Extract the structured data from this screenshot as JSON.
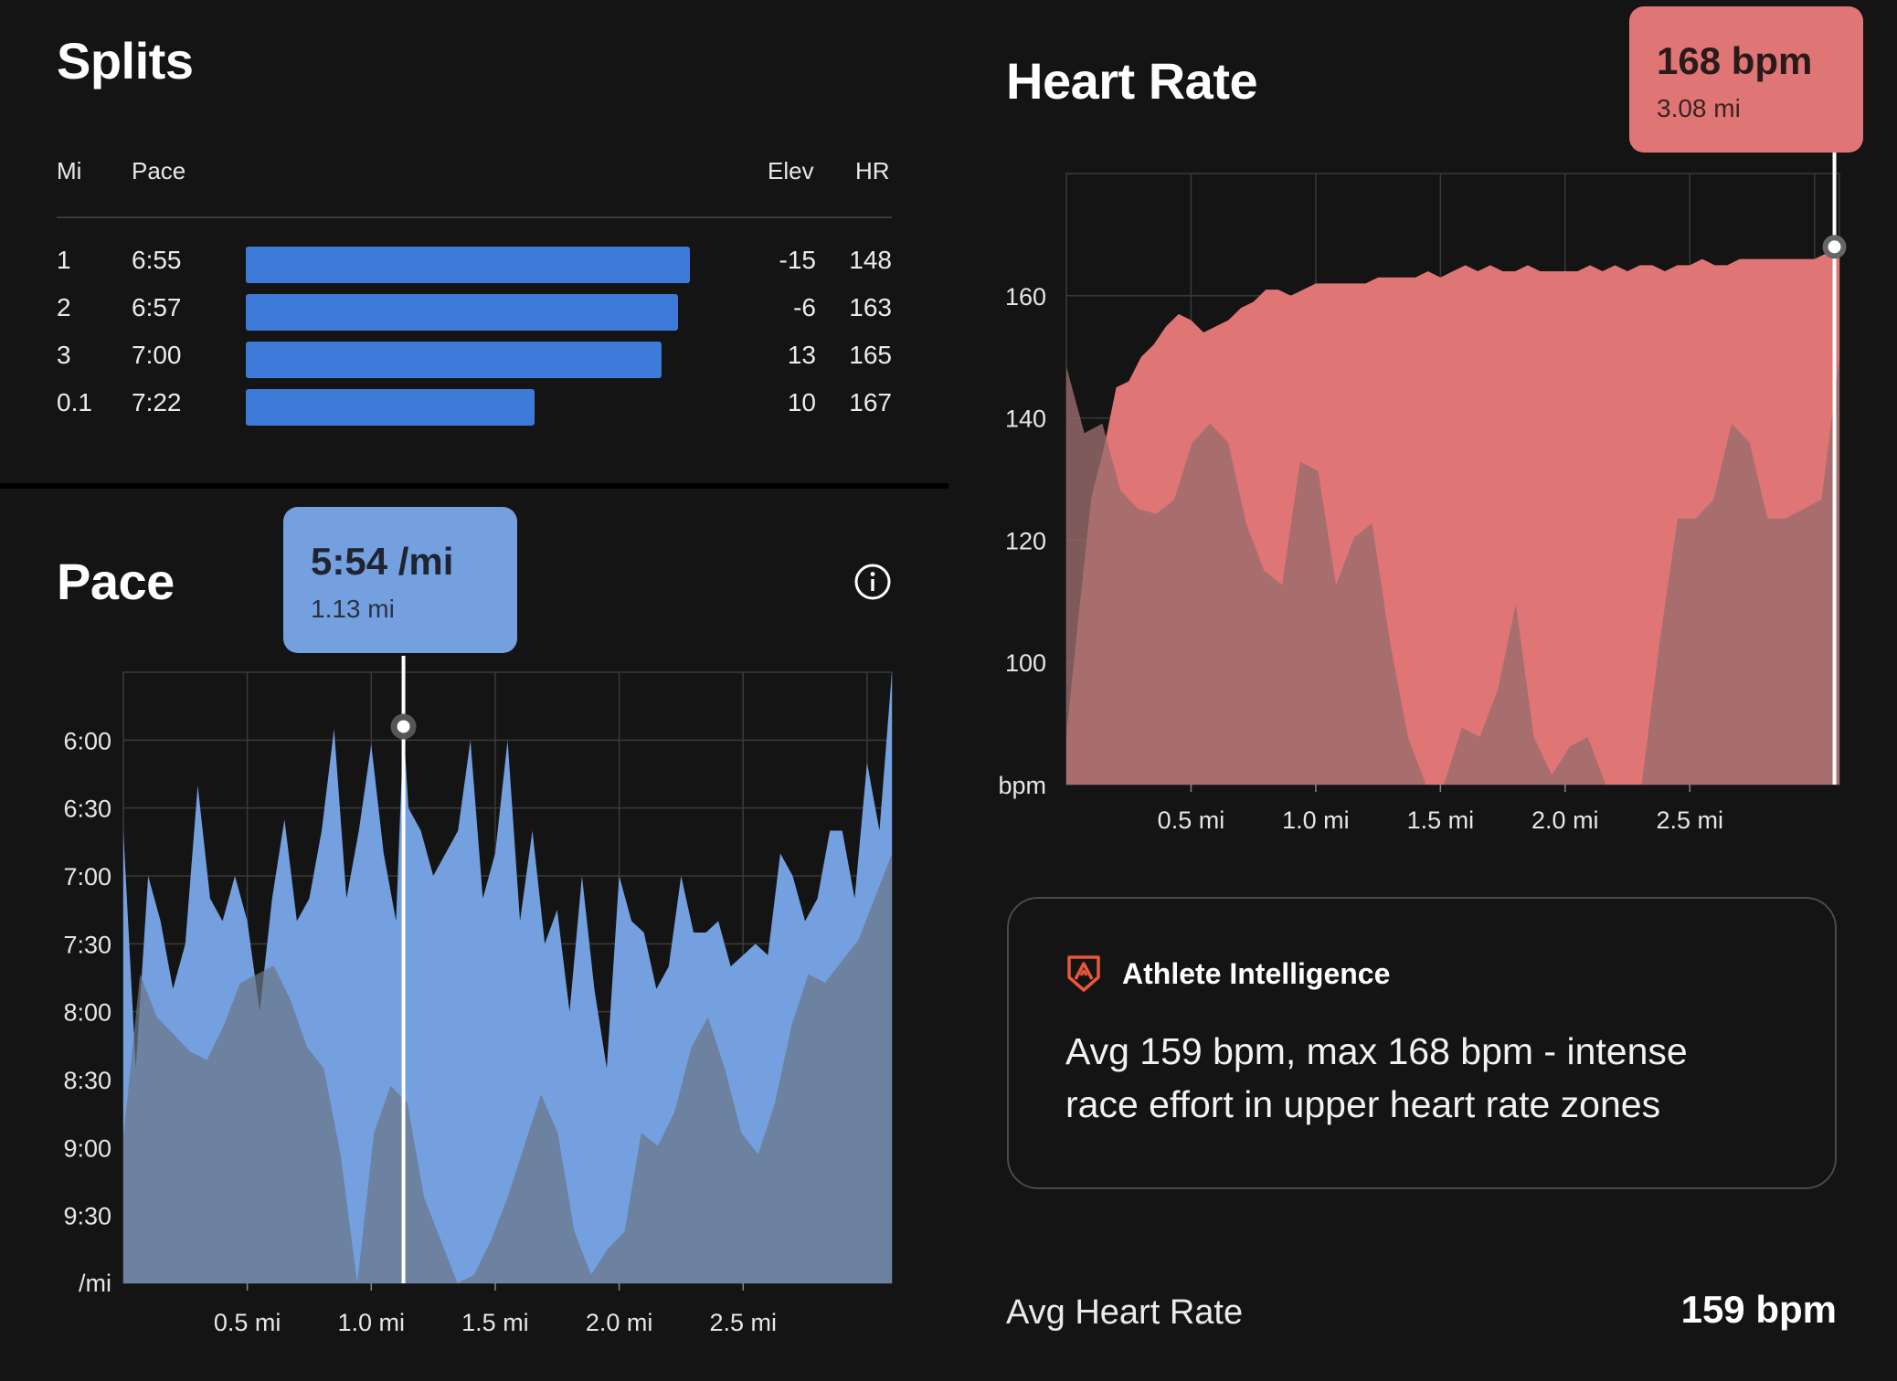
{
  "splits": {
    "title": "Splits",
    "columns": {
      "mi": "Mi",
      "pace": "Pace",
      "elev": "Elev",
      "hr": "HR"
    },
    "rows": [
      {
        "mi": "1",
        "pace": "6:55",
        "elev": "-15",
        "hr": "148",
        "pace_seconds": 415
      },
      {
        "mi": "2",
        "pace": "6:57",
        "elev": "-6",
        "hr": "163",
        "pace_seconds": 417
      },
      {
        "mi": "3",
        "pace": "7:00",
        "elev": "13",
        "hr": "165",
        "pace_seconds": 420
      },
      {
        "mi": "0.1",
        "pace": "7:22",
        "elev": "10",
        "hr": "167",
        "pace_seconds": 442
      }
    ],
    "bar_color": "#3e7bd9"
  },
  "pace": {
    "title": "Pace",
    "info_icon": "info-icon",
    "tooltip": {
      "value": "5:54 /mi",
      "distance": "1.13 mi"
    },
    "color": "#74a0e0",
    "elevation_color": "#6b7486"
  },
  "heart_rate": {
    "title": "Heart Rate",
    "tooltip": {
      "value": "168 bpm",
      "distance": "3.08 mi"
    },
    "color": "#e07576",
    "elevation_color": "#9a6b6b"
  },
  "athlete_intelligence": {
    "icon": "athlete-intelligence-icon",
    "title": "Athlete Intelligence",
    "body_line1": "Avg 159 bpm, max 168 bpm - intense",
    "body_line2": "race effort in upper heart rate zones",
    "accent": "#e8573a"
  },
  "summary": {
    "label": "Avg Heart Rate",
    "value": "159 bpm"
  },
  "chart_data": [
    {
      "type": "area",
      "title": "Pace",
      "ylabel": "/mi",
      "xlabel": "",
      "x_ticks": [
        "0.5 mi",
        "1.0 mi",
        "1.5 mi",
        "2.0 mi",
        "2.5 mi"
      ],
      "y_ticks": [
        "6:00",
        "6:30",
        "7:00",
        "7:30",
        "8:00",
        "8:30",
        "9:00",
        "9:30"
      ],
      "xlim": [
        0,
        3.1
      ],
      "ylim_seconds_per_mile": [
        330,
        600
      ],
      "y_axis_inverted": true,
      "grid": true,
      "series": [
        {
          "x": [
            0,
            0.05,
            0.1,
            0.15,
            0.2,
            0.25,
            0.3,
            0.35,
            0.4,
            0.45,
            0.5,
            0.55,
            0.6,
            0.65,
            0.7,
            0.75,
            0.8,
            0.85,
            0.9,
            0.95,
            1.0,
            1.05,
            1.1,
            1.13,
            1.15,
            1.2,
            1.25,
            1.3,
            1.35,
            1.4,
            1.45,
            1.5,
            1.55,
            1.6,
            1.65,
            1.7,
            1.75,
            1.8,
            1.85,
            1.9,
            1.95,
            2.0,
            2.05,
            2.1,
            2.15,
            2.2,
            2.25,
            2.3,
            2.35,
            2.4,
            2.45,
            2.5,
            2.55,
            2.6,
            2.65,
            2.7,
            2.75,
            2.8,
            2.85,
            2.9,
            2.95,
            3.0,
            3.05,
            3.1
          ],
          "pace_seconds": [
            400,
            505,
            420,
            440,
            470,
            450,
            380,
            430,
            440,
            420,
            440,
            480,
            430,
            395,
            440,
            430,
            400,
            355,
            430,
            400,
            362,
            410,
            440,
            354,
            390,
            400,
            420,
            410,
            400,
            360,
            430,
            410,
            360,
            440,
            400,
            450,
            435,
            480,
            420,
            470,
            505,
            420,
            440,
            445,
            470,
            460,
            420,
            445,
            445,
            440,
            460,
            455,
            450,
            455,
            410,
            420,
            440,
            430,
            400,
            400,
            430,
            370,
            400,
            330
          ]
        }
      ],
      "elevation_profile": true
    },
    {
      "type": "area",
      "title": "Heart Rate",
      "ylabel": "bpm",
      "xlabel": "",
      "x_ticks": [
        "0.5 mi",
        "1.0 mi",
        "1.5 mi",
        "2.0 mi",
        "2.5 mi"
      ],
      "y_ticks": [
        "160",
        "140",
        "120",
        "100",
        "bpm"
      ],
      "xlim": [
        0,
        3.1
      ],
      "ylim": [
        80,
        180
      ],
      "grid": true,
      "series": [
        {
          "x": [
            0,
            0.05,
            0.1,
            0.15,
            0.2,
            0.25,
            0.3,
            0.35,
            0.4,
            0.45,
            0.5,
            0.55,
            0.6,
            0.65,
            0.7,
            0.75,
            0.8,
            0.85,
            0.9,
            0.95,
            1.0,
            1.05,
            1.1,
            1.15,
            1.2,
            1.25,
            1.3,
            1.35,
            1.4,
            1.45,
            1.5,
            1.55,
            1.6,
            1.65,
            1.7,
            1.75,
            1.8,
            1.85,
            1.9,
            1.95,
            2.0,
            2.05,
            2.1,
            2.15,
            2.2,
            2.25,
            2.3,
            2.35,
            2.4,
            2.45,
            2.5,
            2.55,
            2.6,
            2.65,
            2.7,
            2.75,
            2.8,
            2.85,
            2.9,
            2.95,
            3.0,
            3.05,
            3.08,
            3.1
          ],
          "bpm": [
            88,
            108,
            127,
            135,
            145,
            146,
            150,
            152,
            155,
            157,
            156,
            154,
            155,
            156,
            158,
            159,
            161,
            161,
            160,
            161,
            162,
            162,
            162,
            162,
            162,
            163,
            163,
            163,
            163,
            164,
            163,
            164,
            165,
            164,
            165,
            164,
            164,
            165,
            164,
            164,
            164,
            164,
            165,
            164,
            165,
            164,
            165,
            165,
            164,
            165,
            165,
            166,
            165,
            165,
            166,
            166,
            166,
            166,
            166,
            166,
            166,
            167,
            168,
            168
          ]
        }
      ],
      "elevation_profile": true
    }
  ]
}
